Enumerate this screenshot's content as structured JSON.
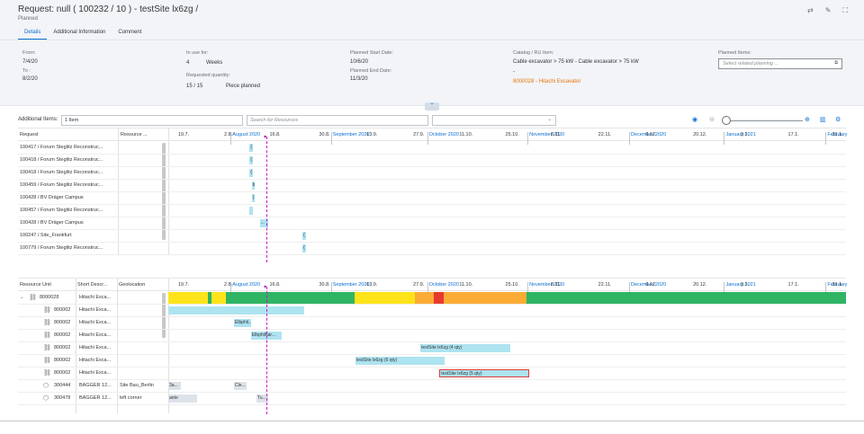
{
  "header": {
    "title": "Request: null ( 100232 / 10 ) - testSite lx6zg /",
    "status": "Planned",
    "icons": [
      "share-icon",
      "edit-icon",
      "fullscreen-icon"
    ],
    "tabs": [
      {
        "label": "Details",
        "active": true
      },
      {
        "label": "Additional Information",
        "active": false
      },
      {
        "label": "Comment",
        "active": false
      }
    ]
  },
  "details": {
    "from_label": "From:",
    "from_value": "7/4/20",
    "to_label": "To :",
    "to_value": "8/2/20",
    "in_use_label": "In use for:",
    "in_use_value": "4",
    "in_use_unit": "Weeks",
    "req_qty_label": "Requested quantity:",
    "req_qty_value": "15  /  15",
    "req_qty_unit": "Piece planned",
    "planned_start_label": "Planned Start Date:",
    "planned_start_value": "10/6/20",
    "planned_end_label": "Planned End Date:",
    "planned_end_value": "11/3/20",
    "catalog_label": "Catalog / RU Item:",
    "catalog_value": "Cable excavator > 75 kW - Cable excavator > 75 kW",
    "catalog_dash": "-",
    "catalog_link": "8000028 - Hitachi Excavator",
    "planned_items_label": "Planned Items:",
    "planned_items_placeholder": "Select related planning ..."
  },
  "toolbar": {
    "additional_items_label": "Additional Items:",
    "additional_items_value": "1 Item",
    "search_placeholder": "Search for Resources",
    "dropdown_value": "",
    "icons": [
      "view-icon",
      "zoom-out-icon",
      "zoom-in-icon",
      "table-icon",
      "settings-icon"
    ]
  },
  "timeline": {
    "months": [
      "August 2020",
      "September 2020",
      "October 2020",
      "November 2020",
      "December 2020",
      "January 2021",
      "February"
    ],
    "weeks": [
      "19.7.",
      "2.8.",
      "16.8.",
      "30.8.",
      "13.9.",
      "27.9.",
      "11.10.",
      "25.10.",
      "8.11.",
      "22.11.",
      "6.12.",
      "20.12.",
      "3.1.",
      "17.1.",
      "31.1."
    ]
  },
  "requests": {
    "col_request": "Request",
    "col_resource": "Resource ...",
    "rows": [
      {
        "label": "100417 / Forum Steglitz Reconstruc...",
        "bar": "(",
        "start": 0.12,
        "width": 0.005
      },
      {
        "label": "100418 / Forum Steglitz Reconstruc...",
        "bar": "(",
        "start": 0.12,
        "width": 0.005
      },
      {
        "label": "100418 / Forum Steglitz Reconstruc...",
        "bar": "(",
        "start": 0.12,
        "width": 0.005
      },
      {
        "label": "100459 / Forum Steglitz Reconstruc...",
        "bar": "b",
        "start": 0.123,
        "width": 0.005
      },
      {
        "label": "100428 / BV Dräger Campus",
        "bar": "(",
        "start": 0.123,
        "width": 0.005
      },
      {
        "label": "100457 / Forum Steglitz Reconstruc...",
        "bar": "",
        "start": 0.12,
        "width": 0.005
      },
      {
        "label": "100428 / BV Dräger Campus",
        "bar": "...",
        "start": 0.135,
        "width": 0.012
      },
      {
        "label": "100247 / Site_Frankfurt",
        "bar": "(",
        "start": 0.198,
        "width": 0.005
      },
      {
        "label": "100779 / Forum Steglitz Reconstruc...",
        "bar": "(",
        "start": 0.198,
        "width": 0.005
      }
    ]
  },
  "resources": {
    "col_unit": "Resource Unit",
    "col_short": "Short Descr...",
    "col_geo": "Geolocation",
    "rows": [
      {
        "icon": "group-icon",
        "id": "8000028",
        "short": "Hitachi Exca...",
        "geo": "",
        "expanded": true,
        "capacity": true
      },
      {
        "icon": "group-icon",
        "id": "800002",
        "short": "Hitachi Exca...",
        "geo": "",
        "bars": [
          {
            "label": "",
            "start": 0.0,
            "width": 0.2
          }
        ]
      },
      {
        "icon": "group-icon",
        "id": "800002",
        "short": "Hitachi Exca...",
        "geo": "",
        "bars": [
          {
            "label": "Elbphil...",
            "start": 0.097,
            "width": 0.025
          }
        ]
      },
      {
        "icon": "group-icon",
        "id": "800002",
        "short": "Hitachi Exca...",
        "geo": "",
        "bars": [
          {
            "label": "Elbphilhar...",
            "start": 0.122,
            "width": 0.045
          }
        ]
      },
      {
        "icon": "group-icon",
        "id": "800002",
        "short": "Hitachi Exca...",
        "geo": "",
        "bars": [
          {
            "label": "testSite lx6zg (4 qty)",
            "start": 0.372,
            "width": 0.133
          }
        ]
      },
      {
        "icon": "group-icon",
        "id": "800002",
        "short": "Hitachi Exca...",
        "geo": "",
        "bars": [
          {
            "label": "testSite lx6zg (6 qty)",
            "start": 0.276,
            "width": 0.132
          }
        ]
      },
      {
        "icon": "group-icon",
        "id": "800002",
        "short": "Hitachi Exca...",
        "geo": "",
        "bars": [
          {
            "label": "testSite lx6zg (5 qty)",
            "start": 0.4,
            "width": 0.133,
            "outlined": true
          }
        ]
      },
      {
        "icon": "box-icon",
        "id": "300444",
        "short": "BAGGER 12...",
        "geo": "Site Bau_Berlin",
        "bars": [
          {
            "label": "3a...",
            "start": 0.0,
            "width": 0.018,
            "grey": true
          },
          {
            "label": "Cle...",
            "start": 0.097,
            "width": 0.018,
            "grey": true
          }
        ]
      },
      {
        "icon": "box-icon",
        "id": "300478",
        "short": "BAGGER 12...",
        "geo": "left corner",
        "bars": [
          {
            "label": "ante",
            "start": 0.0,
            "width": 0.043,
            "grey": true
          },
          {
            "label": "Tu...",
            "start": 0.13,
            "width": 0.018,
            "grey": true
          }
        ]
      }
    ],
    "capacity_segments": [
      {
        "color": "#fde31a",
        "start": 0.0,
        "width": 0.058
      },
      {
        "color": "#2fb464",
        "start": 0.058,
        "width": 0.006
      },
      {
        "color": "#fde31a",
        "start": 0.064,
        "width": 0.021
      },
      {
        "color": "#2fb464",
        "start": 0.085,
        "width": 0.19
      },
      {
        "color": "#fde31a",
        "start": 0.275,
        "width": 0.089
      },
      {
        "color": "#fcac35",
        "start": 0.364,
        "width": 0.028
      },
      {
        "color": "#e73a2f",
        "start": 0.392,
        "width": 0.015
      },
      {
        "color": "#fcac35",
        "start": 0.407,
        "width": 0.122
      },
      {
        "color": "#2fb464",
        "start": 0.529,
        "width": 0.471
      }
    ]
  }
}
